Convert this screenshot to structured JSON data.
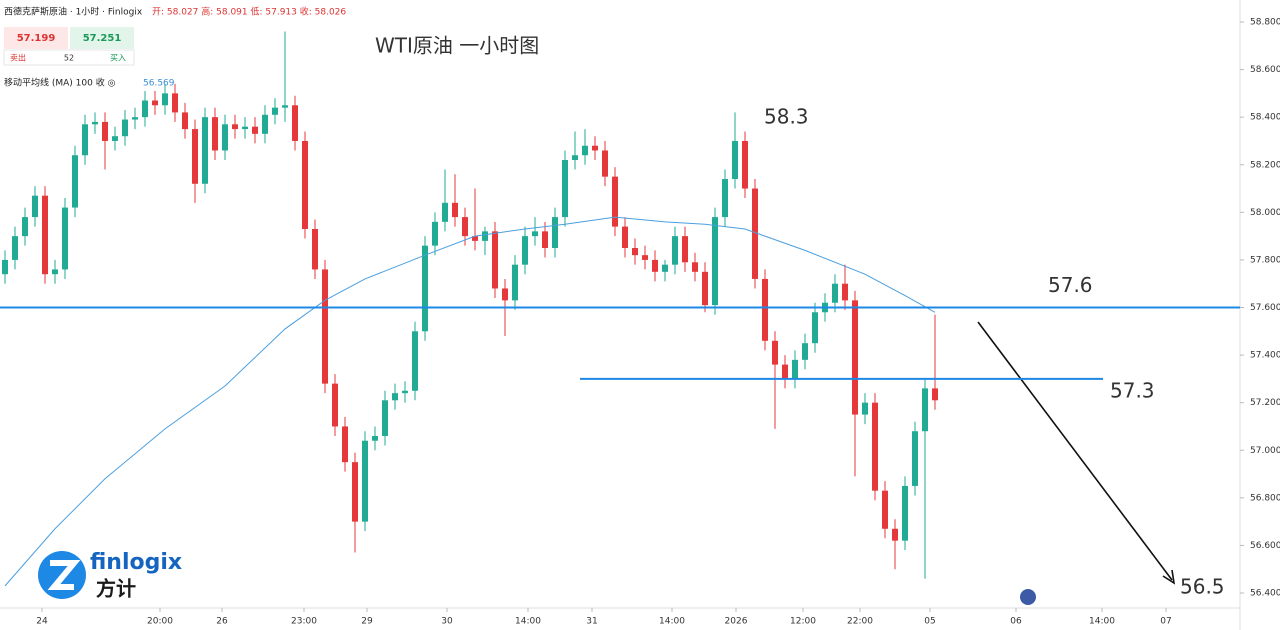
{
  "chart_data": {
    "type": "candlestick",
    "title": "WTI原油 一小时图",
    "header": {
      "symbol": "西德克萨斯原油 · 1小时 · Finlogix",
      "ohlc_line": "开: 58.027  高: 58.091  低: 57.913  收: 58.026",
      "sell_price": "57.199",
      "buy_price": "57.251",
      "sell": "卖出",
      "spread": "52",
      "buy": "买入",
      "indicator": "移动平均线 (MA)  100 收  ◎",
      "indicator_value": "56.569"
    },
    "logo": {
      "name": "finlogix",
      "cn": "方计"
    },
    "up_color": "#22ab94",
    "down_color": "#e5383b",
    "candles": [
      [
        57.74,
        57.84,
        57.7,
        57.8
      ],
      [
        57.8,
        57.94,
        57.76,
        57.9
      ],
      [
        57.9,
        58.02,
        57.86,
        57.98
      ],
      [
        57.98,
        58.11,
        57.94,
        58.07
      ],
      [
        58.07,
        58.11,
        57.7,
        57.74
      ],
      [
        57.74,
        57.8,
        57.7,
        57.76
      ],
      [
        57.76,
        58.06,
        57.72,
        58.02
      ],
      [
        58.02,
        58.28,
        57.98,
        58.24
      ],
      [
        58.24,
        58.41,
        58.2,
        58.37
      ],
      [
        58.37,
        58.42,
        58.33,
        58.38
      ],
      [
        58.38,
        58.42,
        58.18,
        58.3
      ],
      [
        58.3,
        58.36,
        58.26,
        58.32
      ],
      [
        58.32,
        58.43,
        58.28,
        58.39
      ],
      [
        58.39,
        58.44,
        58.35,
        58.4
      ],
      [
        58.4,
        58.51,
        58.36,
        58.47
      ],
      [
        58.47,
        58.51,
        58.41,
        58.45
      ],
      [
        58.45,
        58.54,
        58.41,
        58.5
      ],
      [
        58.5,
        58.54,
        58.38,
        58.42
      ],
      [
        58.42,
        58.46,
        58.31,
        58.35
      ],
      [
        58.35,
        58.39,
        58.04,
        58.12
      ],
      [
        58.12,
        58.44,
        58.08,
        58.4
      ],
      [
        58.4,
        58.44,
        58.22,
        58.26
      ],
      [
        58.26,
        58.41,
        58.22,
        58.37
      ],
      [
        58.37,
        58.41,
        58.31,
        58.35
      ],
      [
        58.35,
        58.4,
        58.31,
        58.36
      ],
      [
        58.36,
        58.4,
        58.29,
        58.33
      ],
      [
        58.33,
        58.45,
        58.29,
        58.41
      ],
      [
        58.41,
        58.48,
        58.37,
        58.44
      ],
      [
        58.44,
        58.76,
        58.38,
        58.45
      ],
      [
        58.45,
        58.49,
        58.26,
        58.3
      ],
      [
        58.3,
        58.34,
        57.89,
        57.93
      ],
      [
        57.93,
        57.97,
        57.72,
        57.76
      ],
      [
        57.76,
        57.8,
        57.24,
        57.28
      ],
      [
        57.28,
        57.32,
        57.06,
        57.1
      ],
      [
        57.1,
        57.14,
        56.91,
        56.95
      ],
      [
        56.95,
        56.99,
        56.57,
        56.7
      ],
      [
        56.7,
        57.08,
        56.66,
        57.04
      ],
      [
        57.04,
        57.1,
        57.0,
        57.06
      ],
      [
        57.06,
        57.25,
        57.02,
        57.21
      ],
      [
        57.21,
        57.28,
        57.17,
        57.24
      ],
      [
        57.24,
        57.29,
        57.2,
        57.25
      ],
      [
        57.25,
        57.54,
        57.21,
        57.5
      ],
      [
        57.5,
        57.9,
        57.46,
        57.86
      ],
      [
        57.86,
        58.0,
        57.82,
        57.96
      ],
      [
        57.96,
        58.18,
        57.92,
        58.04
      ],
      [
        58.04,
        58.16,
        57.94,
        57.98
      ],
      [
        57.98,
        58.02,
        57.86,
        57.9
      ],
      [
        57.9,
        58.1,
        57.84,
        57.88
      ],
      [
        57.88,
        57.94,
        57.82,
        57.92
      ],
      [
        57.92,
        57.96,
        57.64,
        57.68
      ],
      [
        57.68,
        57.72,
        57.48,
        57.63
      ],
      [
        57.63,
        57.82,
        57.59,
        57.78
      ],
      [
        57.78,
        57.94,
        57.74,
        57.9
      ],
      [
        57.9,
        57.98,
        57.86,
        57.92
      ],
      [
        57.92,
        57.96,
        57.81,
        57.85
      ],
      [
        57.85,
        58.02,
        57.81,
        57.98
      ],
      [
        57.98,
        58.26,
        57.94,
        58.22
      ],
      [
        58.22,
        58.34,
        58.18,
        58.24
      ],
      [
        58.24,
        58.35,
        58.2,
        58.28
      ],
      [
        58.28,
        58.32,
        58.22,
        58.26
      ],
      [
        58.26,
        58.3,
        58.11,
        58.15
      ],
      [
        58.15,
        58.19,
        57.9,
        57.94
      ],
      [
        57.94,
        57.98,
        57.81,
        57.85
      ],
      [
        57.85,
        57.89,
        57.78,
        57.82
      ],
      [
        57.82,
        57.86,
        57.76,
        57.8
      ],
      [
        57.8,
        57.84,
        57.71,
        57.75
      ],
      [
        57.75,
        57.8,
        57.71,
        57.78
      ],
      [
        57.78,
        57.94,
        57.74,
        57.9
      ],
      [
        57.9,
        57.94,
        57.75,
        57.79
      ],
      [
        57.79,
        57.83,
        57.71,
        57.75
      ],
      [
        57.75,
        57.79,
        57.58,
        57.61
      ],
      [
        57.61,
        58.02,
        57.57,
        57.98
      ],
      [
        57.98,
        58.18,
        57.94,
        58.14
      ],
      [
        58.14,
        58.42,
        58.1,
        58.3
      ],
      [
        58.3,
        58.34,
        58.06,
        58.1
      ],
      [
        58.1,
        58.14,
        57.68,
        57.72
      ],
      [
        57.72,
        57.76,
        57.42,
        57.46
      ],
      [
        57.46,
        57.5,
        57.09,
        57.36
      ],
      [
        57.36,
        57.4,
        57.26,
        57.3
      ],
      [
        57.3,
        57.42,
        57.26,
        57.38
      ],
      [
        57.38,
        57.49,
        57.34,
        57.45
      ],
      [
        57.45,
        57.62,
        57.41,
        57.58
      ],
      [
        57.58,
        57.66,
        57.54,
        57.62
      ],
      [
        57.62,
        57.74,
        57.58,
        57.7
      ],
      [
        57.7,
        57.78,
        57.59,
        57.63
      ],
      [
        57.63,
        57.67,
        56.89,
        57.15
      ],
      [
        57.15,
        57.24,
        57.11,
        57.2
      ],
      [
        57.2,
        57.24,
        56.79,
        56.83
      ],
      [
        56.83,
        56.87,
        56.63,
        56.67
      ],
      [
        56.67,
        56.71,
        56.5,
        56.62
      ],
      [
        56.62,
        56.89,
        56.58,
        56.85
      ],
      [
        56.85,
        57.12,
        56.81,
        57.08
      ],
      [
        57.08,
        57.3,
        56.46,
        57.26
      ],
      [
        57.26,
        57.57,
        57.17,
        57.21
      ]
    ],
    "ma": {
      "color": "#4a9fe0",
      "x": [
        0,
        5,
        10,
        16,
        22,
        28,
        32,
        36,
        42,
        47,
        52,
        56,
        61,
        66,
        70,
        74,
        80,
        86,
        90,
        93
      ],
      "values": [
        56.43,
        56.67,
        56.88,
        57.09,
        57.27,
        57.51,
        57.63,
        57.72,
        57.82,
        57.9,
        57.93,
        57.95,
        57.98,
        57.96,
        57.95,
        57.93,
        57.84,
        57.74,
        57.65,
        57.58
      ]
    },
    "levels": [
      {
        "value": 57.6,
        "label": "57.6",
        "start": -0.5,
        "end": 123.5
      },
      {
        "value": 57.3,
        "label": "57.3",
        "start": 57.5,
        "end": 109.8
      }
    ],
    "level_color": "#1e88e5",
    "annotations": [
      "58.3",
      "56.5"
    ],
    "xlim": [
      -0.5,
      123.5
    ],
    "xticks": [
      {
        "value": 3.7,
        "label": "24"
      },
      {
        "value": 15.5,
        "label": "20:00"
      },
      {
        "value": 21.7,
        "label": "26"
      },
      {
        "value": 29.9,
        "label": "23:00"
      },
      {
        "value": 36.2,
        "label": "29"
      },
      {
        "value": 44.2,
        "label": "30"
      },
      {
        "value": 52.3,
        "label": "14:00"
      },
      {
        "value": 58.7,
        "label": "31"
      },
      {
        "value": 66.7,
        "label": "14:00"
      },
      {
        "value": 73.1,
        "label": "2026"
      },
      {
        "value": 79.8,
        "label": "12:00"
      },
      {
        "value": 85.5,
        "label": "22:00"
      },
      {
        "value": 92.5,
        "label": "05"
      },
      {
        "value": 101.1,
        "label": "06"
      },
      {
        "value": 109.7,
        "label": "14:00"
      },
      {
        "value": 116.1,
        "label": "07"
      }
    ],
    "ylim": [
      56.4,
      58.8
    ],
    "yticks": [
      {
        "value": 56.4,
        "label": "56.400"
      },
      {
        "value": 56.6,
        "label": "56.600"
      },
      {
        "value": 56.8,
        "label": "56.800"
      },
      {
        "value": 57.0,
        "label": "57.000"
      },
      {
        "value": 57.2,
        "label": "57.200"
      },
      {
        "value": 57.4,
        "label": "57.400"
      },
      {
        "value": 57.6,
        "label": "57.600"
      },
      {
        "value": 57.8,
        "label": "57.800"
      },
      {
        "value": 58.0,
        "label": "58.000"
      },
      {
        "value": 58.2,
        "label": "58.200"
      },
      {
        "value": 58.4,
        "label": "58.400"
      },
      {
        "value": 58.6,
        "label": "58.600"
      },
      {
        "value": 58.8,
        "label": "58.800"
      }
    ]
  }
}
